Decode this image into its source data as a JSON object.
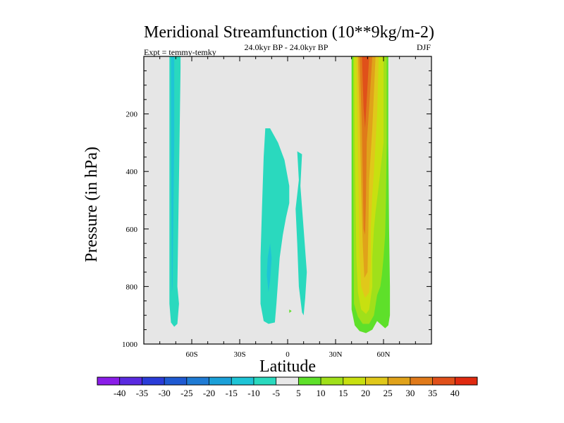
{
  "chart_data": {
    "type": "heatmap",
    "title": "Meridional Streamfunction (10**9kg/m-2)",
    "subtitle_left": "Expt = temmy-temky",
    "subtitle_center": "24.0kyr BP - 24.0kyr BP",
    "subtitle_right": "DJF",
    "xlabel": "Latitude",
    "ylabel": "Pressure (in hPa)",
    "xlim": [
      -90,
      90
    ],
    "ylim": [
      1000,
      0
    ],
    "x_ticks": [
      {
        "value": -60,
        "label": "60S"
      },
      {
        "value": -30,
        "label": "30S"
      },
      {
        "value": 0,
        "label": "0"
      },
      {
        "value": 30,
        "label": "30N"
      },
      {
        "value": 60,
        "label": "60N"
      }
    ],
    "y_ticks": [
      {
        "value": 200,
        "label": "200"
      },
      {
        "value": 400,
        "label": "400"
      },
      {
        "value": 600,
        "label": "600"
      },
      {
        "value": 800,
        "label": "800"
      },
      {
        "value": 1000,
        "label": "1000"
      }
    ],
    "background_color": "#e6e6e6",
    "colorbar": {
      "levels": [
        "-40",
        "-35",
        "-30",
        "-25",
        "-20",
        "-15",
        "-10",
        "-5",
        "5",
        "10",
        "15",
        "20",
        "25",
        "30",
        "35",
        "40"
      ],
      "colors": [
        "#8a1de8",
        "#5a2ae0",
        "#2a3cd8",
        "#1f5ad2",
        "#1f7bd4",
        "#1ba0d8",
        "#1ec4d6",
        "#2ad9be",
        "#e8e8e8",
        "#5ee02a",
        "#a0e01a",
        "#c8e010",
        "#e0c81a",
        "#e0a21a",
        "#e07a1a",
        "#e0501a",
        "#e02a10"
      ]
    },
    "contours": [
      {
        "name": "sh-cell-outer",
        "value": -5,
        "color": "#2ad9be",
        "points": [
          [
            -74,
            0
          ],
          [
            -67,
            0
          ],
          [
            -67,
            40
          ],
          [
            -68,
            420
          ],
          [
            -69,
            800
          ],
          [
            -68,
            860
          ],
          [
            -69,
            930
          ],
          [
            -71,
            940
          ],
          [
            -73,
            925
          ],
          [
            -74,
            860
          ],
          [
            -74,
            420
          ]
        ]
      },
      {
        "name": "sh-cell-inner",
        "value": -10,
        "color": "#1ec4d6",
        "points": [
          [
            -73,
            0
          ],
          [
            -71,
            0
          ],
          [
            -71,
            300
          ],
          [
            -72,
            800
          ],
          [
            -72.5,
            820
          ],
          [
            -73,
            300
          ]
        ]
      },
      {
        "name": "tropical-cell-left",
        "value": -5,
        "color": "#2ad9be",
        "points": [
          [
            -14,
            250
          ],
          [
            -11,
            250
          ],
          [
            -6,
            300
          ],
          [
            -2,
            360
          ],
          [
            1,
            450
          ],
          [
            1,
            510
          ],
          [
            -1,
            560
          ],
          [
            -3,
            620
          ],
          [
            -5,
            700
          ],
          [
            -6,
            780
          ],
          [
            -7,
            860
          ],
          [
            -8,
            925
          ],
          [
            -12,
            930
          ],
          [
            -15,
            920
          ],
          [
            -17,
            860
          ],
          [
            -17,
            700
          ],
          [
            -16,
            520
          ],
          [
            -15,
            350
          ]
        ]
      },
      {
        "name": "tropical-cell-left-core",
        "value": -10,
        "color": "#1ec4d6",
        "points": [
          [
            -11,
            650
          ],
          [
            -10,
            700
          ],
          [
            -11,
            780
          ],
          [
            -12,
            820
          ],
          [
            -13,
            760
          ],
          [
            -12.5,
            700
          ]
        ]
      },
      {
        "name": "tropical-cell-right",
        "value": -5,
        "color": "#2ad9be",
        "points": [
          [
            6,
            330
          ],
          [
            9,
            340
          ],
          [
            8,
            450
          ],
          [
            10,
            600
          ],
          [
            12,
            750
          ],
          [
            11,
            840
          ],
          [
            10,
            900
          ],
          [
            9,
            890
          ],
          [
            7,
            800
          ],
          [
            6,
            650
          ],
          [
            5,
            530
          ],
          [
            7,
            430
          ]
        ]
      },
      {
        "name": "equator-dot",
        "value": 5,
        "color": "#5ee02a",
        "points": [
          [
            1,
            880
          ],
          [
            2.5,
            885
          ],
          [
            1,
            892
          ]
        ]
      },
      {
        "name": "nh-cell-5",
        "value": 5,
        "color": "#5ee02a",
        "points": [
          [
            40,
            0
          ],
          [
            63,
            0
          ],
          [
            63,
            300
          ],
          [
            63.5,
            600
          ],
          [
            64,
            800
          ],
          [
            64,
            900
          ],
          [
            63,
            935
          ],
          [
            61,
            945
          ],
          [
            59,
            935
          ],
          [
            56,
            920
          ],
          [
            53,
            950
          ],
          [
            49,
            962
          ],
          [
            45,
            955
          ],
          [
            42,
            935
          ],
          [
            40,
            880
          ],
          [
            40,
            300
          ]
        ]
      },
      {
        "name": "nh-cell-10",
        "value": 10,
        "color": "#a0e01a",
        "points": [
          [
            41,
            0
          ],
          [
            62,
            0
          ],
          [
            62,
            300
          ],
          [
            61.5,
            500
          ],
          [
            61,
            620
          ],
          [
            60,
            700
          ],
          [
            59,
            760
          ],
          [
            58,
            800
          ],
          [
            56,
            830
          ],
          [
            54,
            900
          ],
          [
            51,
            930
          ],
          [
            47,
            930
          ],
          [
            44,
            905
          ],
          [
            41.5,
            860
          ],
          [
            41,
            300
          ]
        ]
      },
      {
        "name": "nh-cell-15",
        "value": 15,
        "color": "#c8e010",
        "points": [
          [
            41.5,
            0
          ],
          [
            60,
            0
          ],
          [
            60,
            300
          ],
          [
            57,
            450
          ],
          [
            55,
            540
          ],
          [
            54,
            600
          ],
          [
            53,
            700
          ],
          [
            53,
            800
          ],
          [
            51,
            880
          ],
          [
            49,
            895
          ],
          [
            46,
            880
          ],
          [
            44,
            820
          ],
          [
            43,
            700
          ],
          [
            42,
            300
          ]
        ]
      },
      {
        "name": "nh-cell-20",
        "value": 20,
        "color": "#e0c81a",
        "points": [
          [
            43,
            0
          ],
          [
            57,
            0
          ],
          [
            56,
            200
          ],
          [
            54,
            400
          ],
          [
            53,
            480
          ],
          [
            52,
            600
          ],
          [
            52,
            720
          ],
          [
            51,
            820
          ],
          [
            48.5,
            840
          ],
          [
            46,
            800
          ],
          [
            45,
            700
          ],
          [
            44,
            300
          ]
        ]
      },
      {
        "name": "nh-cell-25",
        "value": 25,
        "color": "#e0a21a",
        "points": [
          [
            44,
            0
          ],
          [
            55,
            0
          ],
          [
            53,
            250
          ],
          [
            51,
            430
          ],
          [
            50.5,
            600
          ],
          [
            50,
            750
          ],
          [
            48,
            770
          ],
          [
            47,
            650
          ],
          [
            46,
            450
          ],
          [
            45,
            200
          ]
        ]
      },
      {
        "name": "nh-cell-30",
        "value": 30,
        "color": "#e07a1a",
        "points": [
          [
            45,
            0
          ],
          [
            53,
            0
          ],
          [
            51,
            180
          ],
          [
            49.5,
            300
          ],
          [
            49,
            500
          ],
          [
            48.5,
            620
          ],
          [
            47.5,
            600
          ],
          [
            47,
            420
          ],
          [
            46.5,
            250
          ]
        ]
      },
      {
        "name": "nh-cell-35",
        "value": 35,
        "color": "#e0501a",
        "points": [
          [
            46.5,
            0
          ],
          [
            51,
            0
          ],
          [
            49.5,
            150
          ],
          [
            48.5,
            250
          ],
          [
            47.5,
            180
          ]
        ]
      }
    ]
  }
}
